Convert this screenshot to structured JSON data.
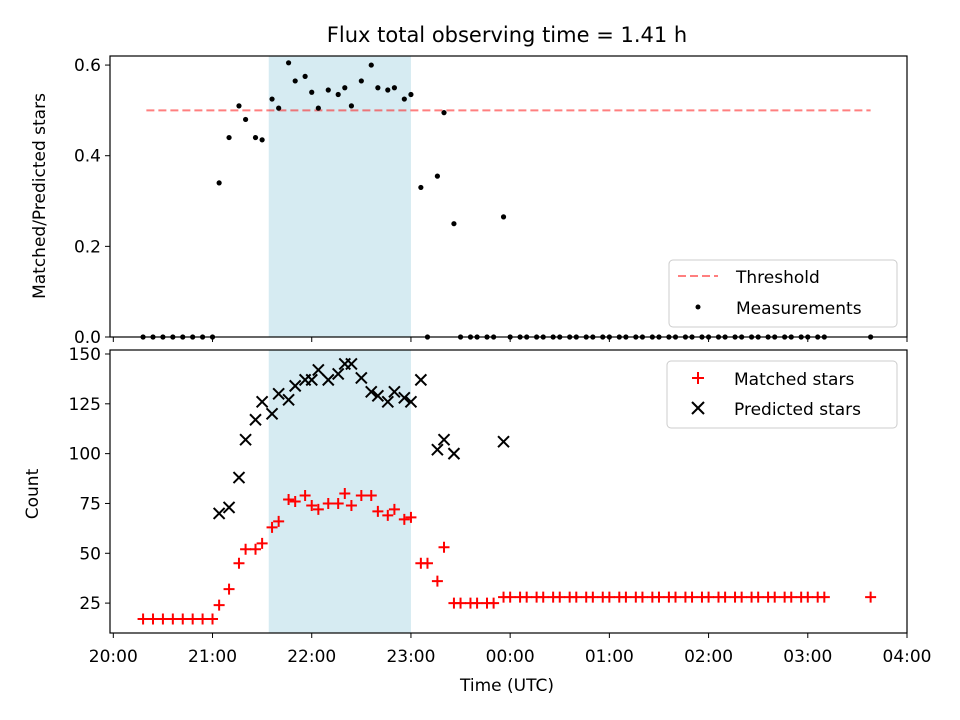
{
  "title": "Flux total observing time = 1.41 h",
  "chart_data": [
    {
      "type": "scatter",
      "ylabel": "Matched/Predicted stars",
      "ylim": [
        0.0,
        0.62
      ],
      "yticks": [
        0.0,
        0.2,
        0.4,
        0.6
      ],
      "ytick_labels": [
        "0.0",
        "0.2",
        "0.4",
        "0.6"
      ],
      "shaded_span": {
        "start": "21:34",
        "end": "23:00",
        "color": "#add8e6"
      },
      "threshold": {
        "name": "Threshold",
        "value": 0.5,
        "x_start": "20:20",
        "x_end": "03:38",
        "color": "#ff0000"
      },
      "legend": {
        "placement": "lower-right",
        "entries": [
          "Threshold",
          "Measurements"
        ]
      },
      "series": [
        {
          "name": "Measurements",
          "marker": "dot",
          "color": "#000000",
          "x": [
            "20:18",
            "20:24",
            "20:30",
            "20:36",
            "20:42",
            "20:48",
            "20:54",
            "21:00",
            "21:04",
            "21:10",
            "21:16",
            "21:20",
            "21:26",
            "21:30",
            "21:36",
            "21:40",
            "21:46",
            "21:50",
            "21:56",
            "22:00",
            "22:04",
            "22:10",
            "22:16",
            "22:20",
            "22:24",
            "22:30",
            "22:36",
            "22:40",
            "22:46",
            "22:50",
            "22:56",
            "23:00",
            "23:06",
            "23:10",
            "23:16",
            "23:20",
            "23:26",
            "23:30",
            "23:36",
            "23:40",
            "23:46",
            "23:50",
            "23:56",
            "00:00",
            "00:06",
            "00:10",
            "00:16",
            "00:20",
            "00:26",
            "00:30",
            "00:36",
            "00:40",
            "00:46",
            "00:50",
            "00:56",
            "01:00",
            "01:06",
            "01:10",
            "01:16",
            "01:20",
            "01:26",
            "01:30",
            "01:36",
            "01:40",
            "01:46",
            "01:50",
            "01:56",
            "02:00",
            "02:06",
            "02:10",
            "02:16",
            "02:20",
            "02:26",
            "02:30",
            "02:36",
            "02:40",
            "02:46",
            "02:50",
            "02:56",
            "03:00",
            "03:06",
            "03:10",
            "03:38"
          ],
          "y": [
            0,
            0,
            0,
            0,
            0,
            0,
            0,
            0,
            0.34,
            0.44,
            0.51,
            0.48,
            0.44,
            0.435,
            0.525,
            0.505,
            0.605,
            0.565,
            0.575,
            0.54,
            0.505,
            0.545,
            0.535,
            0.55,
            0.51,
            0.565,
            0.6,
            0.55,
            0.545,
            0.55,
            0.525,
            0.535,
            0.33,
            0,
            0.355,
            0.495,
            0.25,
            0,
            0,
            0,
            0,
            0,
            0.265,
            0,
            0,
            0,
            0,
            0,
            0,
            0,
            0,
            0,
            0,
            0,
            0,
            0,
            0,
            0,
            0,
            0,
            0,
            0,
            0,
            0,
            0,
            0,
            0,
            0,
            0,
            0,
            0,
            0,
            0,
            0,
            0,
            0,
            0,
            0,
            0,
            0,
            0,
            0,
            0
          ]
        }
      ]
    },
    {
      "type": "scatter",
      "xlabel": "Time (UTC)",
      "ylabel": "Count",
      "xlim": [
        "19:58",
        "04:00"
      ],
      "xticks": [
        "20:00",
        "21:00",
        "22:00",
        "23:00",
        "00:00",
        "01:00",
        "02:00",
        "03:00",
        "04:00"
      ],
      "ylim": [
        10,
        152
      ],
      "yticks": [
        25,
        50,
        75,
        100,
        125,
        150
      ],
      "ytick_labels": [
        "25",
        "50",
        "75",
        "100",
        "125",
        "150"
      ],
      "shaded_span": {
        "start": "21:34",
        "end": "23:00",
        "color": "#add8e6"
      },
      "legend": {
        "placement": "top-right",
        "entries": [
          "Matched stars",
          "Predicted stars"
        ]
      },
      "series": [
        {
          "name": "Matched stars",
          "marker": "plus",
          "color": "#ff0000",
          "x": [
            "20:18",
            "20:24",
            "20:30",
            "20:36",
            "20:42",
            "20:48",
            "20:54",
            "21:00",
            "21:04",
            "21:10",
            "21:16",
            "21:20",
            "21:26",
            "21:30",
            "21:36",
            "21:40",
            "21:46",
            "21:50",
            "21:56",
            "22:00",
            "22:04",
            "22:10",
            "22:16",
            "22:20",
            "22:24",
            "22:30",
            "22:36",
            "22:40",
            "22:46",
            "22:50",
            "22:56",
            "23:00",
            "23:06",
            "23:10",
            "23:16",
            "23:20",
            "23:26",
            "23:30",
            "23:36",
            "23:40",
            "23:46",
            "23:50",
            "23:56",
            "00:00",
            "00:06",
            "00:10",
            "00:16",
            "00:20",
            "00:26",
            "00:30",
            "00:36",
            "00:40",
            "00:46",
            "00:50",
            "00:56",
            "01:00",
            "01:06",
            "01:10",
            "01:16",
            "01:20",
            "01:26",
            "01:30",
            "01:36",
            "01:40",
            "01:46",
            "01:50",
            "01:56",
            "02:00",
            "02:06",
            "02:10",
            "02:16",
            "02:20",
            "02:26",
            "02:30",
            "02:36",
            "02:40",
            "02:46",
            "02:50",
            "02:56",
            "03:00",
            "03:06",
            "03:10",
            "03:38"
          ],
          "y": [
            17,
            17,
            17,
            17,
            17,
            17,
            17,
            17,
            24,
            32,
            45,
            52,
            52,
            55,
            63,
            66,
            77,
            76,
            79,
            74,
            72,
            75,
            75,
            80,
            74,
            79,
            79,
            71,
            69,
            72,
            67,
            68,
            45,
            45,
            36,
            53,
            25,
            25,
            25,
            25,
            25,
            25,
            28,
            28,
            28,
            28,
            28,
            28,
            28,
            28,
            28,
            28,
            28,
            28,
            28,
            28,
            28,
            28,
            28,
            28,
            28,
            28,
            28,
            28,
            28,
            28,
            28,
            28,
            28,
            28,
            28,
            28,
            28,
            28,
            28,
            28,
            28,
            28,
            28,
            28,
            28,
            28,
            28
          ]
        },
        {
          "name": "Predicted stars",
          "marker": "cross",
          "color": "#000000",
          "x": [
            "21:04",
            "21:10",
            "21:16",
            "21:20",
            "21:26",
            "21:30",
            "21:36",
            "21:40",
            "21:46",
            "21:50",
            "21:56",
            "22:00",
            "22:04",
            "22:10",
            "22:16",
            "22:20",
            "22:24",
            "22:30",
            "22:36",
            "22:40",
            "22:46",
            "22:50",
            "22:56",
            "23:00",
            "23:06",
            "23:16",
            "23:20",
            "23:26",
            "23:56"
          ],
          "y": [
            70,
            73,
            88,
            107,
            117,
            126,
            120,
            130,
            127,
            134,
            137,
            137,
            142,
            137,
            140,
            145,
            145,
            138,
            131,
            129,
            126,
            131,
            128,
            126,
            137,
            102,
            107,
            100,
            106
          ]
        }
      ]
    }
  ]
}
